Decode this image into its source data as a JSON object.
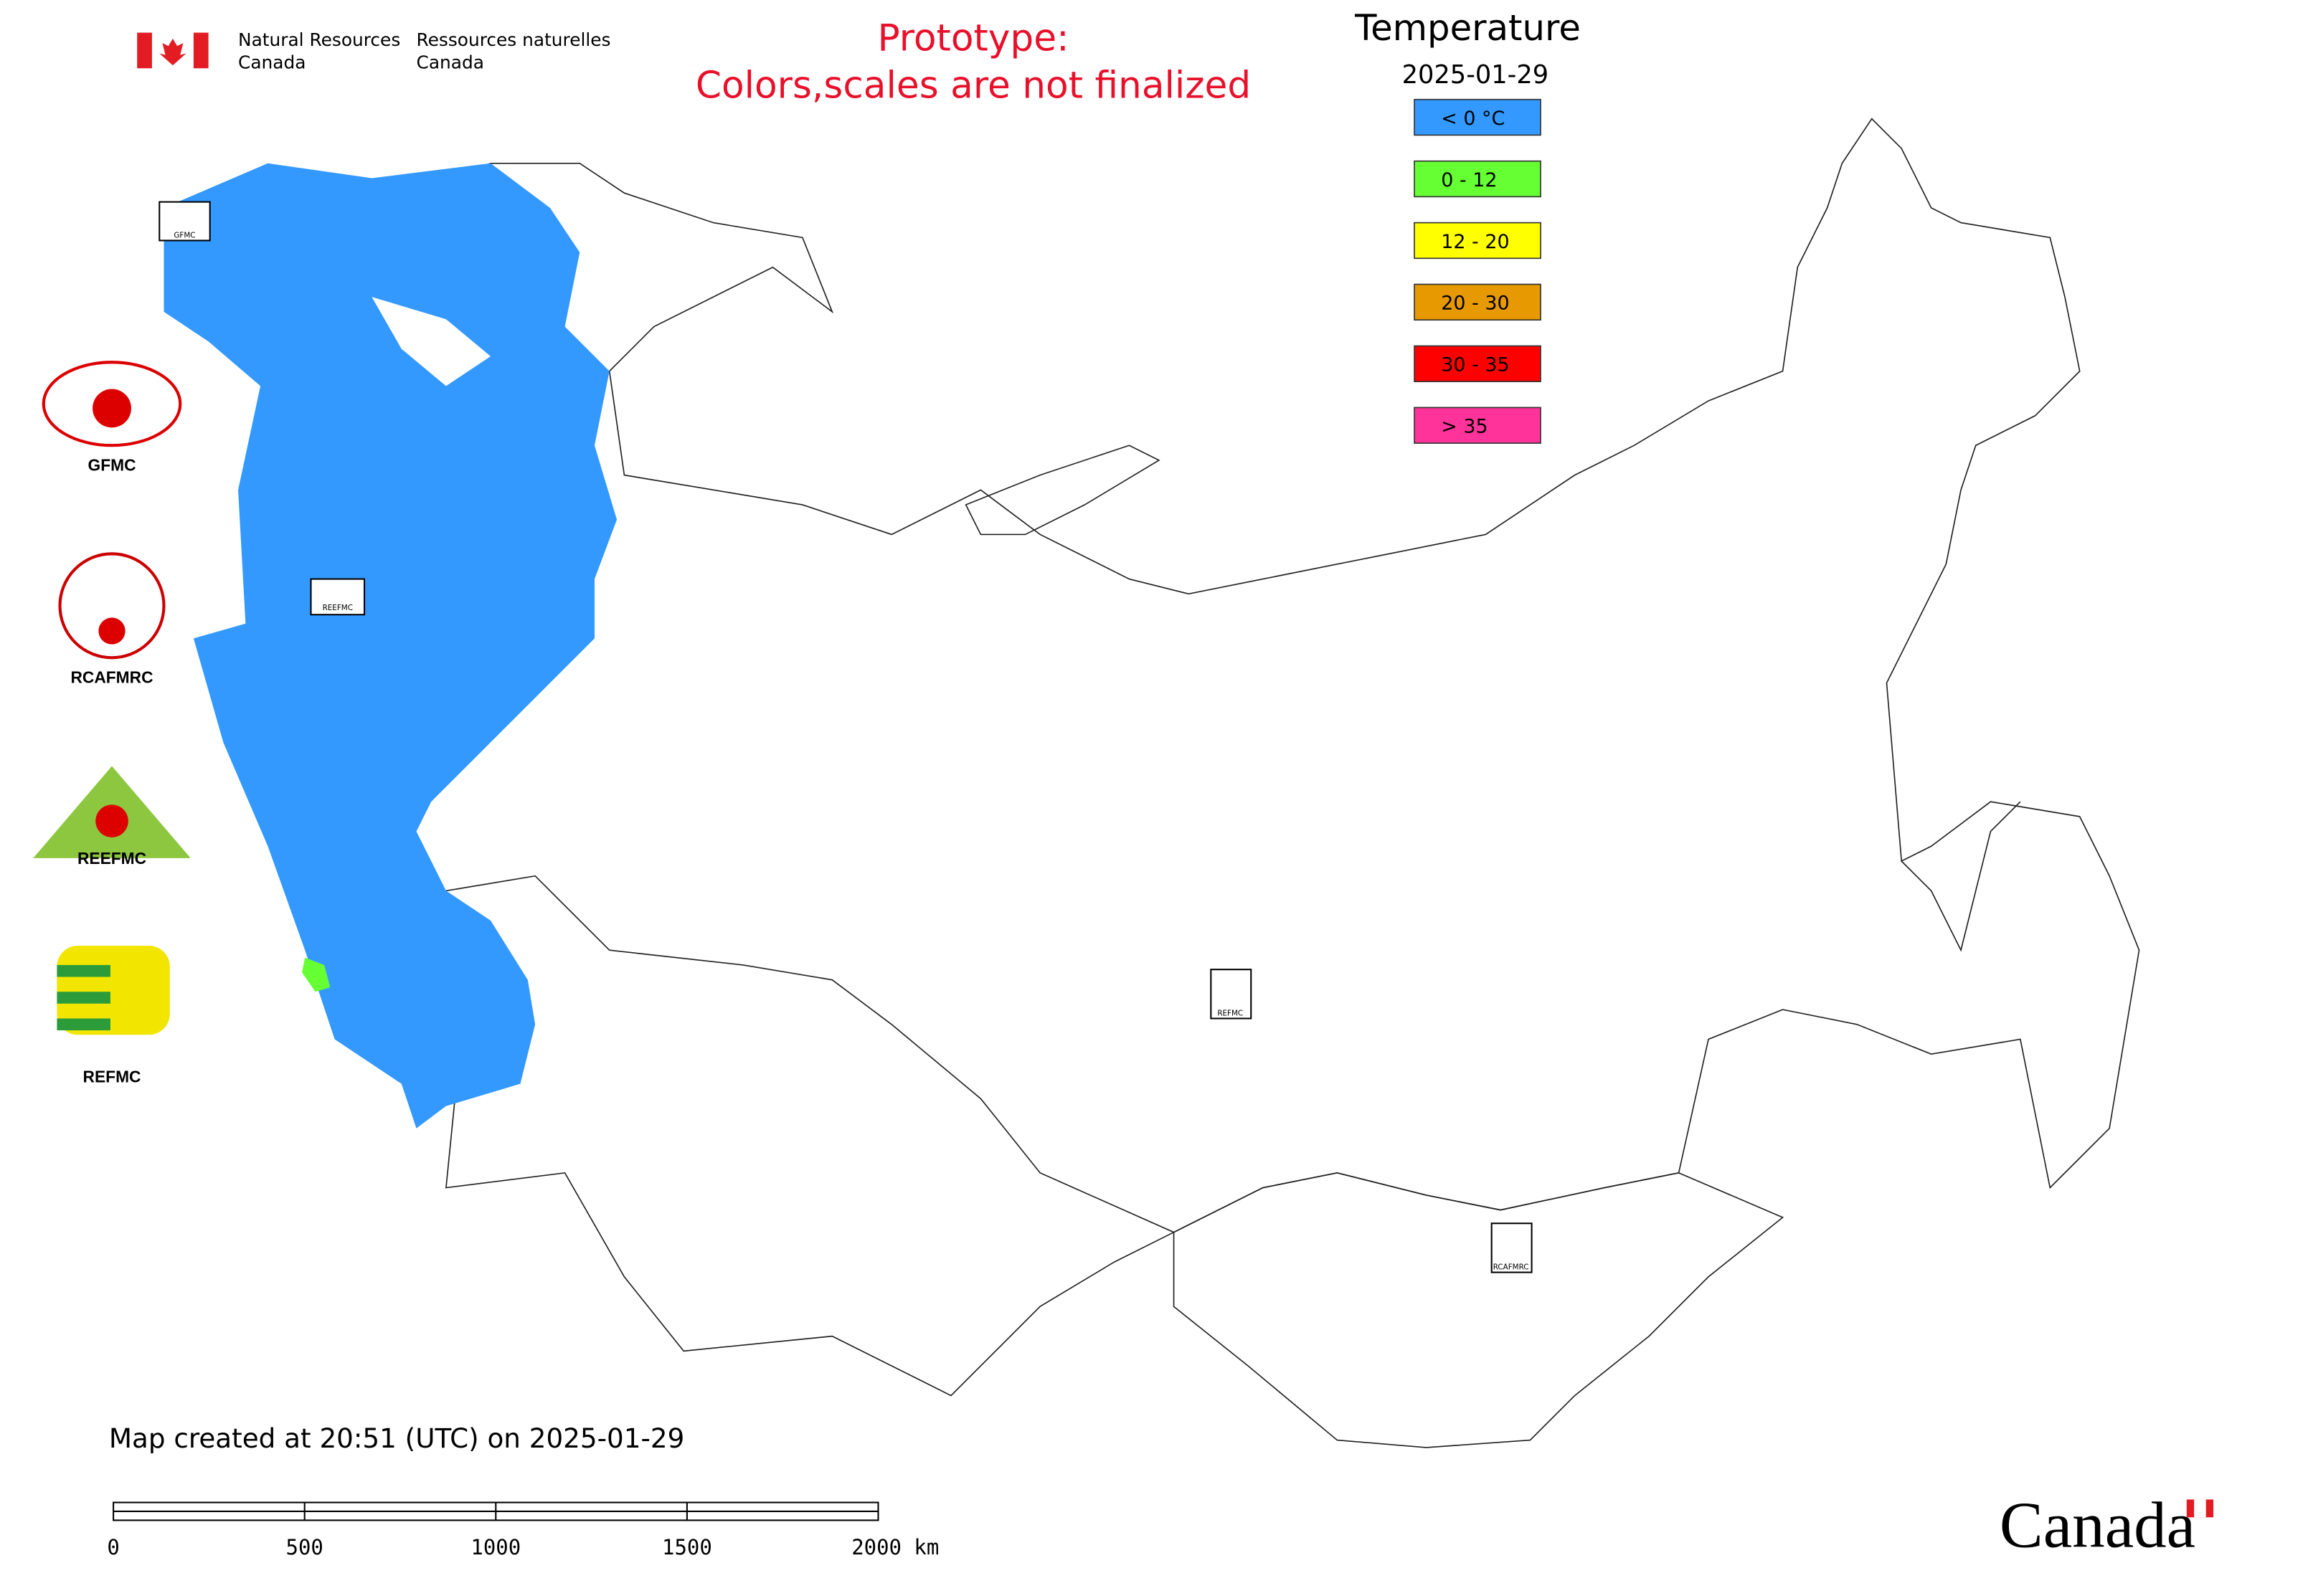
{
  "header": {
    "agency_en": [
      "Natural Resources",
      "Canada"
    ],
    "agency_fr": [
      "Ressources naturelles",
      "Canada"
    ],
    "notice": [
      "Prototype:",
      "Colors,scales are not finalized"
    ]
  },
  "legend": {
    "title": "Temperature",
    "date": "2025-01-29",
    "items": [
      {
        "label": "< 0 °C",
        "color": "#3399ff"
      },
      {
        "label": "0 - 12",
        "color": "#66ff33"
      },
      {
        "label": "12 - 20",
        "color": "#ffff00"
      },
      {
        "label": "20 - 30",
        "color": "#e69900"
      },
      {
        "label": "30 - 35",
        "color": "#ff0000"
      },
      {
        "label": "> 35",
        "color": "#ff3399"
      }
    ]
  },
  "side_logos": [
    "GFMC",
    "RCAFMRC",
    "REEFMC",
    "REFMC"
  ],
  "map_logos": [
    "GFMC",
    "REEFMC",
    "REFMC",
    "RCAFMRC"
  ],
  "footer": {
    "created": "Map created at 20:51 (UTC) on 2025-01-29",
    "scale_labels": [
      "0",
      "500",
      "1000",
      "1500",
      "2000 km"
    ],
    "wordmark": "Canada"
  }
}
